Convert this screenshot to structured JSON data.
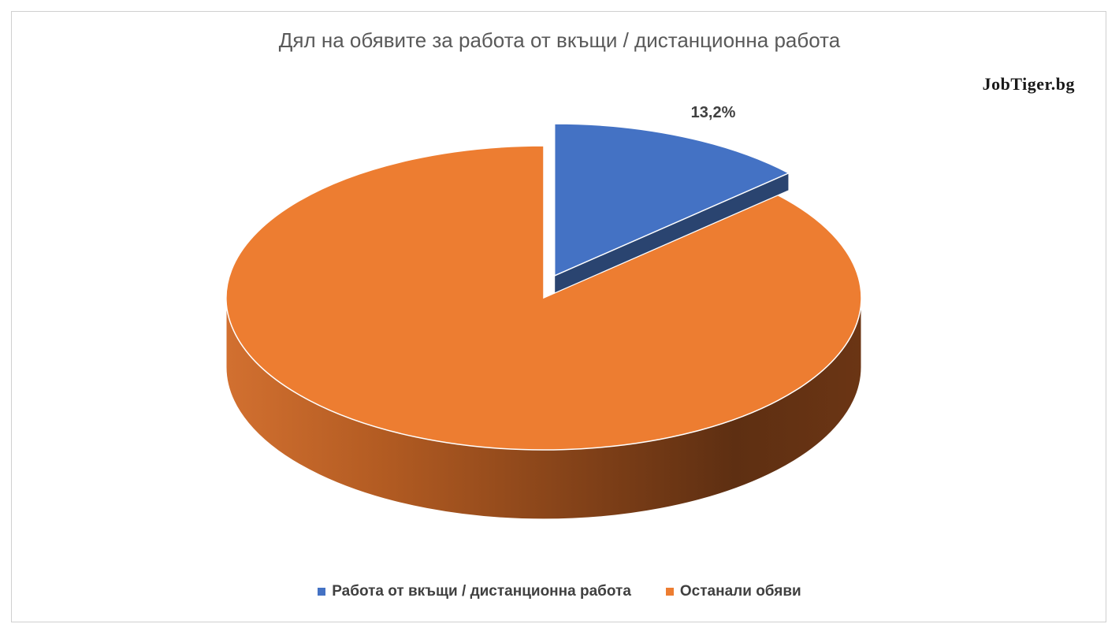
{
  "chart_data": {
    "type": "pie",
    "title": "Дял на обявите за работа от вкъщи / дистанционна работа",
    "watermark": "JobTiger.bg",
    "series": [
      {
        "name": "Работа от вкъщи / дистанционна работа",
        "value": 13.2,
        "label": "13,2%",
        "color": "#4472c4",
        "side_color": "#2a4470",
        "exploded": true
      },
      {
        "name": "Останали обяви",
        "value": 86.8,
        "label": "",
        "color": "#ed7d31",
        "side_light": "#c9682a",
        "side_dark": "#5e2f12",
        "exploded": false
      }
    ],
    "legend_position": "bottom",
    "style": "3d-pie"
  }
}
